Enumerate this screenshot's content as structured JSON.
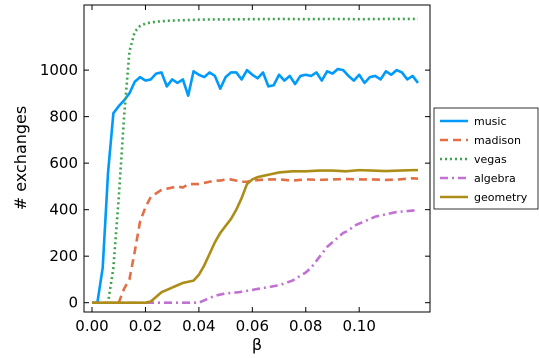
{
  "chart_data": {
    "type": "line",
    "xlabel": "β",
    "ylabel": "# exchanges",
    "xlim": [
      -0.003,
      0.1265
    ],
    "ylim": [
      -40,
      1280
    ],
    "x_ticks": [
      0.0,
      0.02,
      0.04,
      0.06,
      0.08,
      0.1
    ],
    "x_tick_labels": [
      "0.00",
      "0.02",
      "0.04",
      "0.06",
      "0.08",
      "0.10"
    ],
    "y_ticks": [
      0,
      200,
      400,
      600,
      800,
      1000
    ],
    "y_tick_labels": [
      "0",
      "200",
      "400",
      "600",
      "800",
      "1000"
    ],
    "grid": false,
    "legend_position": "right",
    "series": [
      {
        "name": "music",
        "color": "#009AFA",
        "dash": "solid",
        "x": [
          0.0,
          0.002,
          0.004,
          0.006,
          0.008,
          0.01,
          0.012,
          0.014,
          0.016,
          0.018,
          0.02,
          0.022,
          0.024,
          0.026,
          0.028,
          0.03,
          0.032,
          0.034,
          0.036,
          0.038,
          0.04,
          0.042,
          0.044,
          0.046,
          0.048,
          0.05,
          0.052,
          0.054,
          0.056,
          0.058,
          0.06,
          0.062,
          0.064,
          0.066,
          0.068,
          0.07,
          0.072,
          0.074,
          0.076,
          0.078,
          0.08,
          0.082,
          0.084,
          0.086,
          0.088,
          0.09,
          0.092,
          0.094,
          0.096,
          0.098,
          0.1,
          0.102,
          0.104,
          0.106,
          0.108,
          0.11,
          0.112,
          0.114,
          0.116,
          0.118,
          0.12,
          0.122
        ],
        "y": [
          0,
          0,
          150,
          560,
          815,
          845,
          870,
          900,
          950,
          970,
          955,
          960,
          985,
          990,
          930,
          960,
          945,
          960,
          890,
          995,
          980,
          970,
          990,
          975,
          920,
          970,
          990,
          990,
          960,
          1000,
          980,
          965,
          990,
          930,
          935,
          980,
          955,
          975,
          940,
          975,
          980,
          975,
          990,
          955,
          995,
          985,
          1005,
          1000,
          975,
          955,
          980,
          945,
          970,
          975,
          960,
          995,
          980,
          1000,
          990,
          960,
          975,
          945
        ]
      },
      {
        "name": "madison",
        "color": "#E26F46",
        "dash": "dash",
        "x": [
          0.0,
          0.002,
          0.004,
          0.006,
          0.008,
          0.01,
          0.012,
          0.014,
          0.016,
          0.018,
          0.02,
          0.022,
          0.024,
          0.026,
          0.028,
          0.03,
          0.032,
          0.034,
          0.036,
          0.038,
          0.04,
          0.042,
          0.044,
          0.046,
          0.048,
          0.05,
          0.052,
          0.054,
          0.056,
          0.058,
          0.06,
          0.065,
          0.07,
          0.075,
          0.08,
          0.085,
          0.09,
          0.095,
          0.1,
          0.105,
          0.11,
          0.115,
          0.12,
          0.122
        ],
        "y": [
          0,
          0,
          0,
          0,
          0,
          0,
          60,
          100,
          220,
          350,
          410,
          455,
          470,
          485,
          490,
          495,
          500,
          495,
          510,
          510,
          510,
          515,
          520,
          525,
          525,
          530,
          530,
          525,
          520,
          520,
          525,
          530,
          530,
          525,
          530,
          528,
          530,
          532,
          530,
          530,
          528,
          530,
          535,
          533
        ]
      },
      {
        "name": "vegas",
        "color": "#3DA44D",
        "dash": "dot",
        "x": [
          0.0,
          0.002,
          0.004,
          0.006,
          0.008,
          0.01,
          0.012,
          0.014,
          0.016,
          0.018,
          0.02,
          0.022,
          0.024,
          0.026,
          0.028,
          0.03,
          0.035,
          0.04,
          0.045,
          0.05,
          0.06,
          0.07,
          0.08,
          0.09,
          0.1,
          0.11,
          0.12,
          0.122
        ],
        "y": [
          0,
          0,
          0,
          0,
          150,
          450,
          800,
          1080,
          1165,
          1190,
          1200,
          1205,
          1208,
          1210,
          1212,
          1213,
          1215,
          1217,
          1218,
          1218,
          1219,
          1220,
          1219,
          1220,
          1219,
          1220,
          1220,
          1220
        ]
      },
      {
        "name": "algebra",
        "color": "#C271D2",
        "dash": "dashdot",
        "x": [
          0.0,
          0.01,
          0.02,
          0.03,
          0.04,
          0.042,
          0.044,
          0.046,
          0.048,
          0.05,
          0.055,
          0.06,
          0.065,
          0.07,
          0.075,
          0.08,
          0.082,
          0.084,
          0.086,
          0.088,
          0.09,
          0.092,
          0.094,
          0.096,
          0.098,
          0.1,
          0.102,
          0.104,
          0.106,
          0.108,
          0.11,
          0.112,
          0.114,
          0.116,
          0.118,
          0.12,
          0.122
        ],
        "y": [
          0,
          0,
          0,
          0,
          0,
          10,
          20,
          30,
          35,
          40,
          45,
          55,
          65,
          75,
          95,
          130,
          150,
          180,
          210,
          240,
          260,
          280,
          300,
          310,
          330,
          340,
          350,
          360,
          370,
          375,
          380,
          385,
          390,
          392,
          394,
          396,
          398
        ]
      },
      {
        "name": "geometry",
        "color": "#AC8D18",
        "dash": "solid",
        "x": [
          0.0,
          0.01,
          0.02,
          0.022,
          0.024,
          0.026,
          0.028,
          0.03,
          0.032,
          0.034,
          0.036,
          0.038,
          0.04,
          0.042,
          0.044,
          0.046,
          0.048,
          0.05,
          0.052,
          0.054,
          0.056,
          0.058,
          0.06,
          0.062,
          0.064,
          0.066,
          0.068,
          0.07,
          0.075,
          0.08,
          0.085,
          0.09,
          0.095,
          0.1,
          0.105,
          0.11,
          0.115,
          0.12,
          0.122
        ],
        "y": [
          0,
          0,
          0,
          5,
          25,
          45,
          55,
          65,
          75,
          85,
          90,
          95,
          120,
          160,
          210,
          260,
          300,
          330,
          360,
          400,
          450,
          510,
          530,
          540,
          545,
          550,
          555,
          560,
          565,
          565,
          568,
          568,
          565,
          570,
          568,
          566,
          568,
          570,
          570
        ]
      }
    ]
  }
}
